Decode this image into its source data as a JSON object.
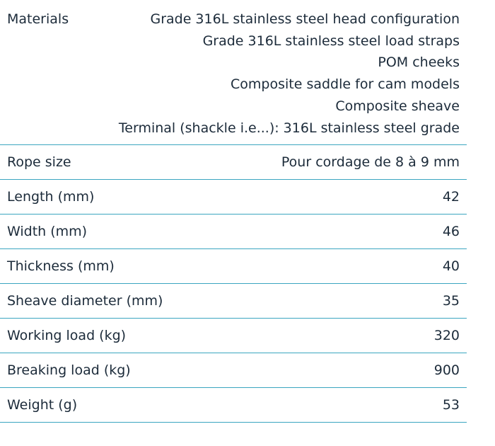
{
  "table": {
    "rows": [
      {
        "label": "Materials",
        "values": [
          "Grade 316L stainless steel head configuration",
          "Grade 316L stainless steel load straps",
          "POM cheeks",
          "Composite saddle for cam models",
          "Composite sheave",
          "Terminal (shackle i.e...): 316L stainless steel grade"
        ]
      },
      {
        "label": "Rope size",
        "value": "Pour cordage de 8 à 9 mm"
      },
      {
        "label": "Length (mm)",
        "value": 42
      },
      {
        "label": "Width (mm)",
        "value": 46
      },
      {
        "label": "Thickness (mm)",
        "value": 40
      },
      {
        "label": "Sheave diameter (mm)",
        "value": 35
      },
      {
        "label": "Working load (kg)",
        "value": 320
      },
      {
        "label": "Breaking load (kg)",
        "value": 900
      },
      {
        "label": "Weight (g)",
        "value": 53
      }
    ]
  }
}
